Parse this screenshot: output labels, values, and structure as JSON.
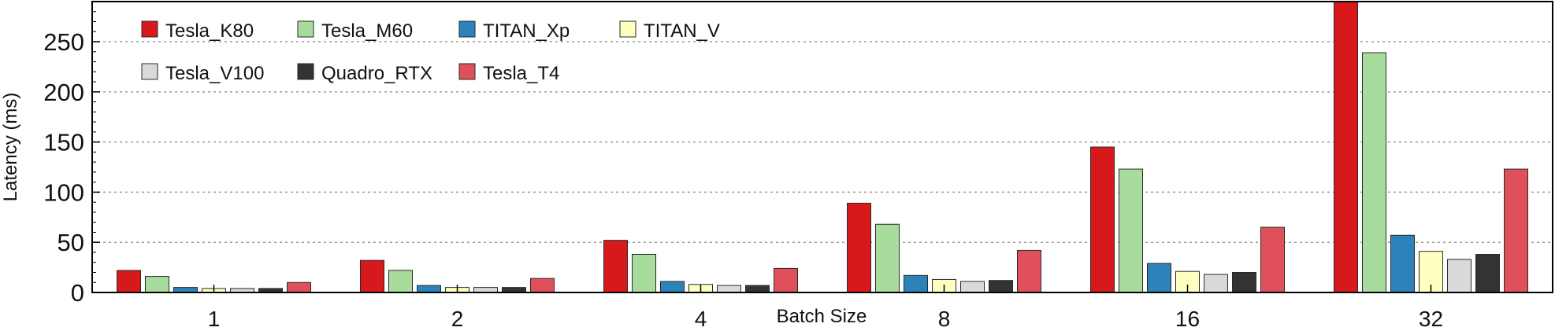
{
  "chart_data": {
    "type": "bar",
    "title": "",
    "xlabel": "Batch Size",
    "ylabel": "Latency (ms)",
    "categories": [
      "1",
      "2",
      "4",
      "8",
      "16",
      "32"
    ],
    "ylim": [
      0,
      290
    ],
    "yticks": [
      0,
      50,
      100,
      150,
      200,
      250
    ],
    "grid": "horizontal-dotted",
    "legend_position": "top-left",
    "series": [
      {
        "name": "Tesla_K80",
        "color": "#d7191c",
        "values": [
          22,
          32,
          52,
          89,
          145,
          290
        ]
      },
      {
        "name": "Tesla_M60",
        "color": "#a8dc9c",
        "values": [
          16,
          22,
          38,
          68,
          123,
          239
        ]
      },
      {
        "name": "TITAN_Xp",
        "color": "#2b83ba",
        "values": [
          5,
          7,
          11,
          17,
          29,
          57
        ]
      },
      {
        "name": "TITAN_V",
        "color": "#ffffbf",
        "values": [
          4,
          5,
          8,
          13,
          21,
          41
        ]
      },
      {
        "name": "Tesla_V100",
        "color": "#d9d9d9",
        "values": [
          4,
          5,
          7,
          11,
          18,
          33
        ]
      },
      {
        "name": "Quadro_RTX",
        "color": "#333333",
        "values": [
          4,
          5,
          7,
          12,
          20,
          38
        ]
      },
      {
        "name": "Tesla_T4",
        "color": "#e0505a",
        "values": [
          10,
          14,
          24,
          42,
          65,
          123
        ]
      }
    ]
  }
}
